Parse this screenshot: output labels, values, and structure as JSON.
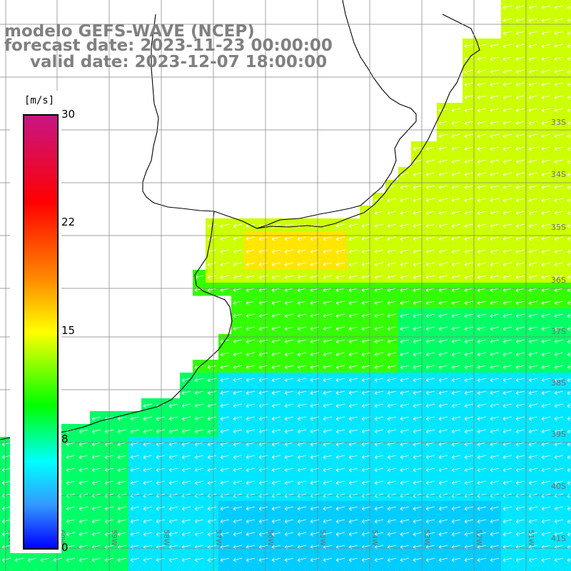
{
  "header": {
    "title": "modelo GEFS-WAVE (NCEP)",
    "forecast_date": "forecast date: 2023-11-23 00:00:00",
    "valid_date": "valid date: 2023-12-07 18:00:00"
  },
  "colorbar": {
    "unit": "[m/s]",
    "ticks": [
      "30",
      "22",
      "15",
      "8",
      "0"
    ],
    "colors": [
      "#0000ff",
      "#3399ff",
      "#00ffff",
      "#00ff00",
      "#ffff00",
      "#ff8c00",
      "#ff0000",
      "#c71585"
    ]
  },
  "map": {
    "lat_labels": [
      "33S",
      "34S",
      "35S",
      "36S",
      "37S",
      "38S",
      "39S",
      "40S",
      "41S"
    ],
    "lon_labels": [
      "61W",
      "60W",
      "59W",
      "58W",
      "57W",
      "56W",
      "55W",
      "54W",
      "53W",
      "52W",
      "51W"
    ],
    "ocean_colors": {
      "strong": "#ffe600",
      "mid": "#ccff00",
      "green": "#33ff00",
      "teal": "#00ff66",
      "cyan": "#00e6ff",
      "blue": "#00ccff"
    },
    "land_color": "#ffffff",
    "coast_color": "#000000",
    "arrow_color": "#ffffff",
    "grid_color": "#808080"
  }
}
